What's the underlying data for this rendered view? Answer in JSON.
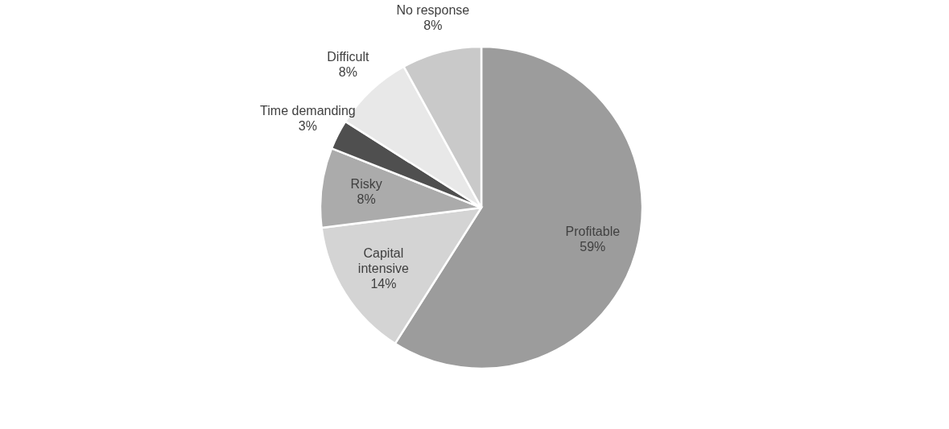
{
  "chart_data": {
    "type": "pie",
    "categories": [
      "Profitable",
      "Capital intensive",
      "Risky",
      "Time demanding",
      "Difficult",
      "No response"
    ],
    "values": [
      59,
      14,
      8,
      3,
      8,
      8
    ],
    "value_labels": [
      "59%",
      "14%",
      "8%",
      "3%",
      "8%",
      "8%"
    ],
    "colors": [
      "#9c9c9c",
      "#d4d4d4",
      "#ababab",
      "#4f4f4f",
      "#e8e8e8",
      "#c9c9c9"
    ]
  }
}
